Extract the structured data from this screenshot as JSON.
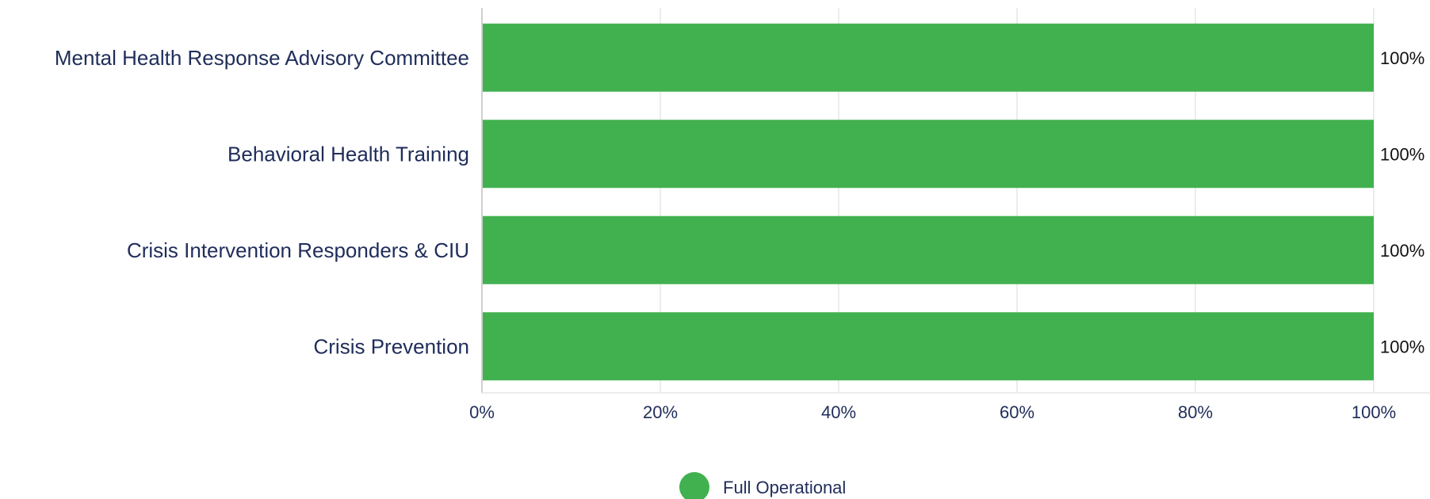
{
  "chart_data": {
    "type": "bar",
    "orientation": "horizontal",
    "categories": [
      "Mental Health Response Advisory Committee",
      "Behavioral Health Training",
      "Crisis Intervention Responders & CIU",
      "Crisis Prevention"
    ],
    "series": [
      {
        "name": "Full Operational",
        "values": [
          100,
          100,
          100,
          100
        ],
        "color": "#41b14f"
      }
    ],
    "data_labels": [
      "100%",
      "100%",
      "100%",
      "100%"
    ],
    "x_ticks": [
      "0%",
      "20%",
      "40%",
      "60%",
      "80%",
      "100%"
    ],
    "xlim": [
      0,
      100
    ],
    "grid": true,
    "legend": "bottom-center"
  }
}
